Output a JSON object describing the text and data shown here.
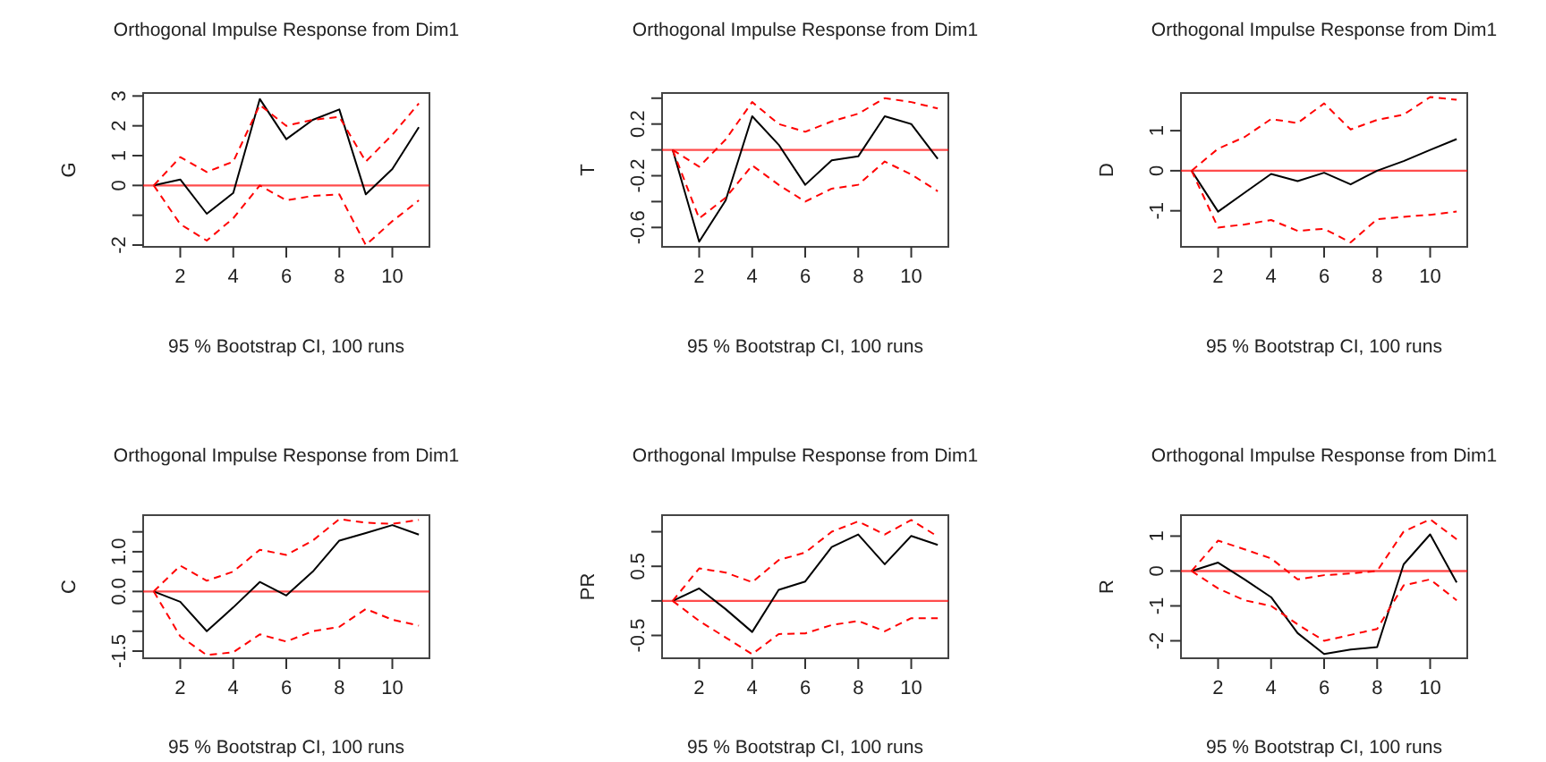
{
  "chart_data": [
    {
      "type": "line",
      "title": "Orthogonal Impulse Response from Dim1",
      "ylabel": "G",
      "annotations": [
        "95 % Bootstrap CI,  100 runs"
      ],
      "x": [
        1,
        2,
        3,
        4,
        5,
        6,
        7,
        8,
        9,
        10,
        11
      ],
      "xlim": [
        0.6,
        11.4
      ],
      "xticks": [
        2,
        4,
        6,
        8,
        10
      ],
      "ylim": [
        -2.06,
        3.1
      ],
      "yticks": [
        {
          "value": -2,
          "label": "-2"
        },
        {
          "value": -1,
          "label": null
        },
        0,
        1,
        2,
        3
      ],
      "series": [
        {
          "color": "#000000",
          "line_style": "solid",
          "values": [
            0,
            0.2,
            -0.95,
            -0.25,
            2.9,
            1.55,
            2.2,
            2.55,
            -0.3,
            0.55,
            1.95
          ]
        },
        {
          "color": "#ff0000",
          "line_style": "dashed",
          "values": [
            0,
            0.95,
            0.45,
            0.8,
            2.7,
            2.0,
            2.2,
            2.3,
            0.8,
            1.7,
            2.75
          ]
        },
        {
          "color": "#ff0000",
          "line_style": "dashed",
          "values": [
            0,
            -1.3,
            -1.85,
            -1.1,
            0,
            -0.5,
            -0.35,
            -0.3,
            -2.0,
            -1.2,
            -0.5
          ]
        }
      ],
      "ref_lines": [
        {
          "axis": "y",
          "value": 0,
          "color": "#ff0000"
        }
      ]
    },
    {
      "type": "line",
      "title": "Orthogonal Impulse Response from Dim1",
      "ylabel": "T",
      "annotations": [
        "95 % Bootstrap CI,  100 runs"
      ],
      "x": [
        1,
        2,
        3,
        4,
        5,
        6,
        7,
        8,
        9,
        10,
        11
      ],
      "xlim": [
        0.6,
        11.4
      ],
      "xticks": [
        2,
        4,
        6,
        8,
        10
      ],
      "ylim": [
        -0.75,
        0.44
      ],
      "yticks": [
        {
          "value": -0.6,
          "label": "-0.6"
        },
        {
          "value": -0.4,
          "label": null
        },
        {
          "value": -0.2,
          "label": "-0.2"
        },
        {
          "value": 0,
          "label": null
        },
        0.2,
        {
          "value": 0.4,
          "label": null
        }
      ],
      "series": [
        {
          "color": "#000000",
          "line_style": "solid",
          "values": [
            0,
            -0.71,
            -0.39,
            0.26,
            0.04,
            -0.27,
            -0.08,
            -0.05,
            0.26,
            0.2,
            -0.07
          ]
        },
        {
          "color": "#ff0000",
          "line_style": "dashed",
          "values": [
            0,
            -0.13,
            0.08,
            0.37,
            0.2,
            0.14,
            0.22,
            0.28,
            0.4,
            0.37,
            0.32
          ]
        },
        {
          "color": "#ff0000",
          "line_style": "dashed",
          "values": [
            0,
            -0.53,
            -0.37,
            -0.12,
            -0.27,
            -0.4,
            -0.3,
            -0.27,
            -0.09,
            -0.19,
            -0.32
          ]
        }
      ],
      "ref_lines": [
        {
          "axis": "y",
          "value": 0,
          "color": "#ff0000"
        }
      ]
    },
    {
      "type": "line",
      "title": "Orthogonal Impulse Response from Dim1",
      "ylabel": "D",
      "annotations": [
        "95 % Bootstrap CI,  100 runs"
      ],
      "x": [
        1,
        2,
        3,
        4,
        5,
        6,
        7,
        8,
        9,
        10,
        11
      ],
      "xlim": [
        0.6,
        11.4
      ],
      "xticks": [
        2,
        4,
        6,
        8,
        10
      ],
      "ylim": [
        -1.9,
        1.94
      ],
      "yticks": [
        -1,
        0,
        1
      ],
      "series": [
        {
          "color": "#000000",
          "line_style": "solid",
          "values": [
            0,
            -1.02,
            -0.55,
            -0.08,
            -0.26,
            -0.05,
            -0.34,
            0,
            0.24,
            0.52,
            0.79
          ]
        },
        {
          "color": "#ff0000",
          "line_style": "dashed",
          "values": [
            0,
            0.55,
            0.84,
            1.29,
            1.19,
            1.68,
            1.03,
            1.27,
            1.4,
            1.84,
            1.77
          ]
        },
        {
          "color": "#ff0000",
          "line_style": "dashed",
          "values": [
            0,
            -1.42,
            -1.34,
            -1.23,
            -1.5,
            -1.45,
            -1.79,
            -1.21,
            -1.15,
            -1.1,
            -1.02
          ]
        }
      ],
      "ref_lines": [
        {
          "axis": "y",
          "value": 0,
          "color": "#ff0000"
        }
      ]
    },
    {
      "type": "line",
      "title": "Orthogonal Impulse Response from Dim1",
      "ylabel": "C",
      "annotations": [
        "95 % Bootstrap CI,  100 runs"
      ],
      "x": [
        1,
        2,
        3,
        4,
        5,
        6,
        7,
        8,
        9,
        10,
        11
      ],
      "xlim": [
        0.6,
        11.4
      ],
      "xticks": [
        2,
        4,
        6,
        8,
        10
      ],
      "ylim": [
        -1.68,
        1.92
      ],
      "yticks": [
        {
          "value": -1.5,
          "label": "-1.5"
        },
        {
          "value": -1,
          "label": null
        },
        {
          "value": -0.5,
          "label": null
        },
        {
          "value": 0,
          "label": "0.0"
        },
        {
          "value": 0.5,
          "label": null
        },
        {
          "value": 1,
          "label": "1.0"
        },
        {
          "value": 1.5,
          "label": null
        }
      ],
      "series": [
        {
          "color": "#000000",
          "line_style": "solid",
          "values": [
            0,
            -0.26,
            -1.0,
            -0.4,
            0.24,
            -0.1,
            0.5,
            1.28,
            1.47,
            1.67,
            1.43
          ]
        },
        {
          "color": "#ff0000",
          "line_style": "dashed",
          "values": [
            0,
            0.65,
            0.27,
            0.5,
            1.05,
            0.92,
            1.28,
            1.82,
            1.73,
            1.7,
            1.8
          ]
        },
        {
          "color": "#ff0000",
          "line_style": "dashed",
          "values": [
            0,
            -1.13,
            -1.6,
            -1.53,
            -1.08,
            -1.26,
            -1.0,
            -0.89,
            -0.44,
            -0.71,
            -0.86
          ]
        }
      ],
      "ref_lines": [
        {
          "axis": "y",
          "value": 0,
          "color": "#ff0000"
        }
      ]
    },
    {
      "type": "line",
      "title": "Orthogonal Impulse Response from Dim1",
      "ylabel": "PR",
      "annotations": [
        "95 % Bootstrap CI,  100 runs"
      ],
      "x": [
        1,
        2,
        3,
        4,
        5,
        6,
        7,
        8,
        9,
        10,
        11
      ],
      "xlim": [
        0.6,
        11.4
      ],
      "xticks": [
        2,
        4,
        6,
        8,
        10
      ],
      "ylim": [
        -0.83,
        1.24
      ],
      "yticks": [
        -0.5,
        {
          "value": 0,
          "label": null
        },
        0.5,
        {
          "value": 1,
          "label": null
        }
      ],
      "series": [
        {
          "color": "#000000",
          "line_style": "solid",
          "values": [
            0,
            0.18,
            -0.12,
            -0.45,
            0.16,
            0.28,
            0.78,
            0.96,
            0.53,
            0.94,
            0.81
          ]
        },
        {
          "color": "#ff0000",
          "line_style": "dashed",
          "values": [
            0,
            0.47,
            0.41,
            0.27,
            0.59,
            0.7,
            1.0,
            1.15,
            0.96,
            1.17,
            0.93
          ]
        },
        {
          "color": "#ff0000",
          "line_style": "dashed",
          "values": [
            0,
            -0.29,
            -0.53,
            -0.77,
            -0.48,
            -0.47,
            -0.35,
            -0.29,
            -0.44,
            -0.25,
            -0.25
          ]
        }
      ],
      "ref_lines": [
        {
          "axis": "y",
          "value": 0,
          "color": "#ff0000"
        }
      ]
    },
    {
      "type": "line",
      "title": "Orthogonal Impulse Response from Dim1",
      "ylabel": "R",
      "annotations": [
        "95 % Bootstrap CI,  100 runs"
      ],
      "x": [
        1,
        2,
        3,
        4,
        5,
        6,
        7,
        8,
        9,
        10,
        11
      ],
      "xlim": [
        0.6,
        11.4
      ],
      "xticks": [
        2,
        4,
        6,
        8,
        10
      ],
      "ylim": [
        -2.5,
        1.6
      ],
      "yticks": [
        -2,
        -1,
        0,
        1
      ],
      "series": [
        {
          "color": "#000000",
          "line_style": "solid",
          "values": [
            0,
            0.24,
            -0.24,
            -0.75,
            -1.78,
            -2.38,
            -2.25,
            -2.18,
            0.19,
            1.05,
            -0.33
          ]
        },
        {
          "color": "#ff0000",
          "line_style": "dashed",
          "values": [
            0,
            0.87,
            0.62,
            0.36,
            -0.24,
            -0.12,
            -0.07,
            0,
            1.13,
            1.48,
            0.91
          ]
        },
        {
          "color": "#ff0000",
          "line_style": "dashed",
          "values": [
            0,
            -0.5,
            -0.84,
            -1.0,
            -1.53,
            -2.0,
            -1.83,
            -1.66,
            -0.41,
            -0.24,
            -0.84
          ]
        }
      ],
      "ref_lines": [
        {
          "axis": "y",
          "value": 0,
          "color": "#ff0000"
        }
      ]
    }
  ]
}
